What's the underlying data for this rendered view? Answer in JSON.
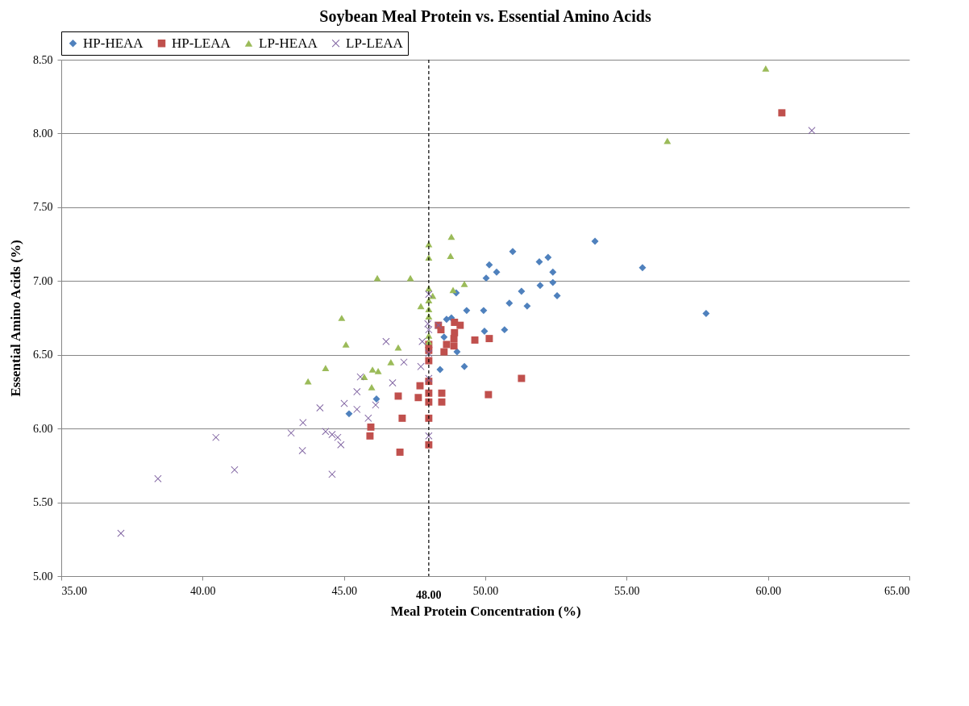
{
  "chart_data": {
    "type": "scatter",
    "title": "Soybean Meal Protein vs. Essential Amino Acids",
    "xlabel": "Meal Protein Concentration  (%)",
    "ylabel": "Essential Amino Acids (%)",
    "xlim": [
      35,
      65
    ],
    "xticks": [
      {
        "value": 35,
        "label": "35.00"
      },
      {
        "value": 40,
        "label": "40.00"
      },
      {
        "value": 45,
        "label": "45.00"
      },
      {
        "value": 50,
        "label": "50.00"
      },
      {
        "value": 55,
        "label": "55.00"
      },
      {
        "value": 60,
        "label": "60.00"
      },
      {
        "value": 65,
        "label": "65.00"
      }
    ],
    "ylim": [
      5,
      8.5
    ],
    "yticks": [
      {
        "value": 5,
        "label": "5.00"
      },
      {
        "value": 5.5,
        "label": "5.50"
      },
      {
        "value": 6,
        "label": "6.00"
      },
      {
        "value": 6.5,
        "label": "6.50"
      },
      {
        "value": 7,
        "label": "7.00"
      },
      {
        "value": 7.5,
        "label": "7.50"
      },
      {
        "value": 8,
        "label": "8.00"
      },
      {
        "value": 8.5,
        "label": "8.50"
      }
    ],
    "grid": "y",
    "legend": "top",
    "ref_lines": [
      {
        "axis": "x",
        "value": 48,
        "label": "48.00",
        "color": "#000000",
        "line_style": "dashed"
      }
    ],
    "series": [
      {
        "name": "HP-HEAA",
        "color": "#4f81bd",
        "marker": "diamond",
        "x": [
          45.18,
          46.15,
          48.4,
          49.26,
          49.0,
          48.54,
          48.63,
          48.8,
          48.97,
          49.34,
          49.94,
          49.97,
          50.68,
          50.85,
          51.48,
          51.28,
          51.94,
          52.39,
          52.54,
          50.03,
          50.14,
          50.4,
          50.97,
          51.91,
          52.22,
          52.39,
          53.88,
          55.56,
          57.81
        ],
        "values": [
          6.1,
          6.2,
          6.4,
          6.42,
          6.52,
          6.62,
          6.74,
          6.75,
          6.92,
          6.8,
          6.8,
          6.66,
          6.67,
          6.85,
          6.83,
          6.93,
          6.97,
          6.99,
          6.9,
          7.02,
          7.11,
          7.06,
          7.2,
          7.13,
          7.16,
          7.06,
          7.27,
          7.09,
          6.78
        ]
      },
      {
        "name": "HP-LEAA",
        "color": "#c0504d",
        "marker": "square",
        "x": [
          48.0,
          46.98,
          47.06,
          48.0,
          45.95,
          45.92,
          46.92,
          47.63,
          47.69,
          48.0,
          48.0,
          48.0,
          48.46,
          48.46,
          50.11,
          51.28,
          48.0,
          48.0,
          48.0,
          48.54,
          48.63,
          48.89,
          48.89,
          48.91,
          48.91,
          49.11,
          48.43,
          48.34,
          49.63,
          50.14,
          60.49
        ],
        "values": [
          5.89,
          5.84,
          6.07,
          6.07,
          6.01,
          5.95,
          6.22,
          6.21,
          6.29,
          6.18,
          6.24,
          6.32,
          6.24,
          6.18,
          6.23,
          6.34,
          6.46,
          6.53,
          6.57,
          6.52,
          6.57,
          6.56,
          6.61,
          6.65,
          6.72,
          6.7,
          6.67,
          6.7,
          6.6,
          6.61,
          8.14
        ]
      },
      {
        "name": "LP-HEAA",
        "color": "#9bbb59",
        "marker": "triangle",
        "x": [
          43.73,
          44.35,
          44.92,
          45.07,
          45.72,
          46.01,
          46.21,
          45.98,
          46.66,
          46.92,
          46.18,
          47.35,
          48.0,
          48.0,
          48.0,
          48.0,
          48.0,
          48.0,
          48.0,
          48.0,
          47.72,
          48.14,
          48.8,
          48.77,
          48.86,
          49.26,
          59.92,
          56.44
        ],
        "values": [
          6.32,
          6.41,
          6.75,
          6.57,
          6.35,
          6.4,
          6.39,
          6.28,
          6.45,
          6.55,
          7.02,
          7.02,
          7.25,
          7.16,
          6.95,
          6.87,
          6.81,
          6.76,
          6.63,
          6.59,
          6.83,
          6.9,
          7.3,
          7.17,
          6.94,
          6.98,
          8.44,
          7.95
        ]
      },
      {
        "name": "LP-LEAA",
        "color": "#8064a2",
        "marker": "cross",
        "x": [
          37.11,
          38.42,
          40.47,
          41.13,
          43.13,
          43.55,
          44.15,
          43.53,
          44.35,
          44.58,
          44.78,
          44.89,
          44.58,
          45.01,
          45.46,
          45.46,
          45.58,
          45.86,
          46.12,
          46.72,
          47.12,
          46.49,
          47.72,
          47.77,
          48.0,
          47.97,
          48.0,
          48.34,
          48.0,
          48.0,
          48.0,
          61.55
        ],
        "values": [
          5.29,
          5.66,
          5.94,
          5.72,
          5.97,
          6.04,
          6.14,
          5.85,
          5.98,
          5.96,
          5.94,
          5.89,
          5.69,
          6.17,
          6.13,
          6.25,
          6.35,
          6.07,
          6.16,
          6.31,
          6.45,
          6.59,
          6.42,
          6.59,
          6.91,
          6.71,
          6.67,
          6.7,
          6.51,
          6.34,
          5.95,
          8.02
        ]
      }
    ]
  }
}
